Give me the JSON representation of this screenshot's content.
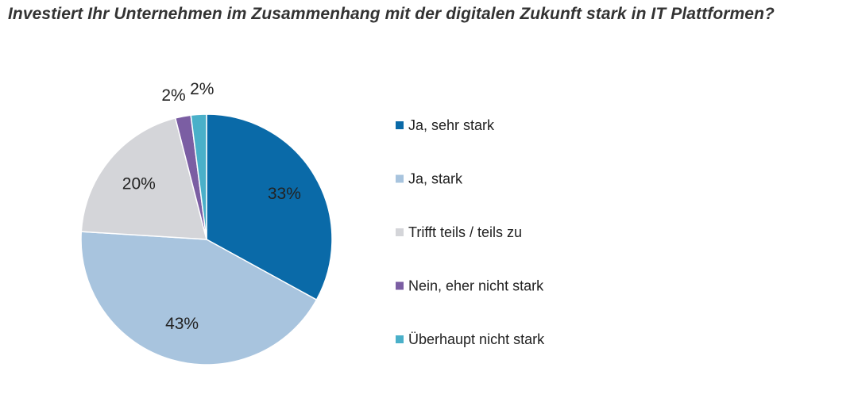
{
  "chart_data": {
    "type": "pie",
    "title": "Investiert Ihr Unternehmen im Zusammenhang mit der digitalen Zukunft stark in IT Plattformen?",
    "legend_position": "right",
    "slices": [
      {
        "name": "Ja, sehr stark",
        "value": 33,
        "label": "33%",
        "color": "#0a6aa8"
      },
      {
        "name": "Ja, stark",
        "value": 43,
        "label": "43%",
        "color": "#a8c4de"
      },
      {
        "name": "Trifft teils  / teils zu",
        "value": 20,
        "label": "20%",
        "color": "#d4d5d9"
      },
      {
        "name": "Nein, eher nicht stark",
        "value": 2,
        "label": "2%",
        "color": "#7b5ea3"
      },
      {
        "name": "Überhaupt nicht stark",
        "value": 2,
        "label": "2%",
        "color": "#4ab0c9"
      }
    ]
  }
}
